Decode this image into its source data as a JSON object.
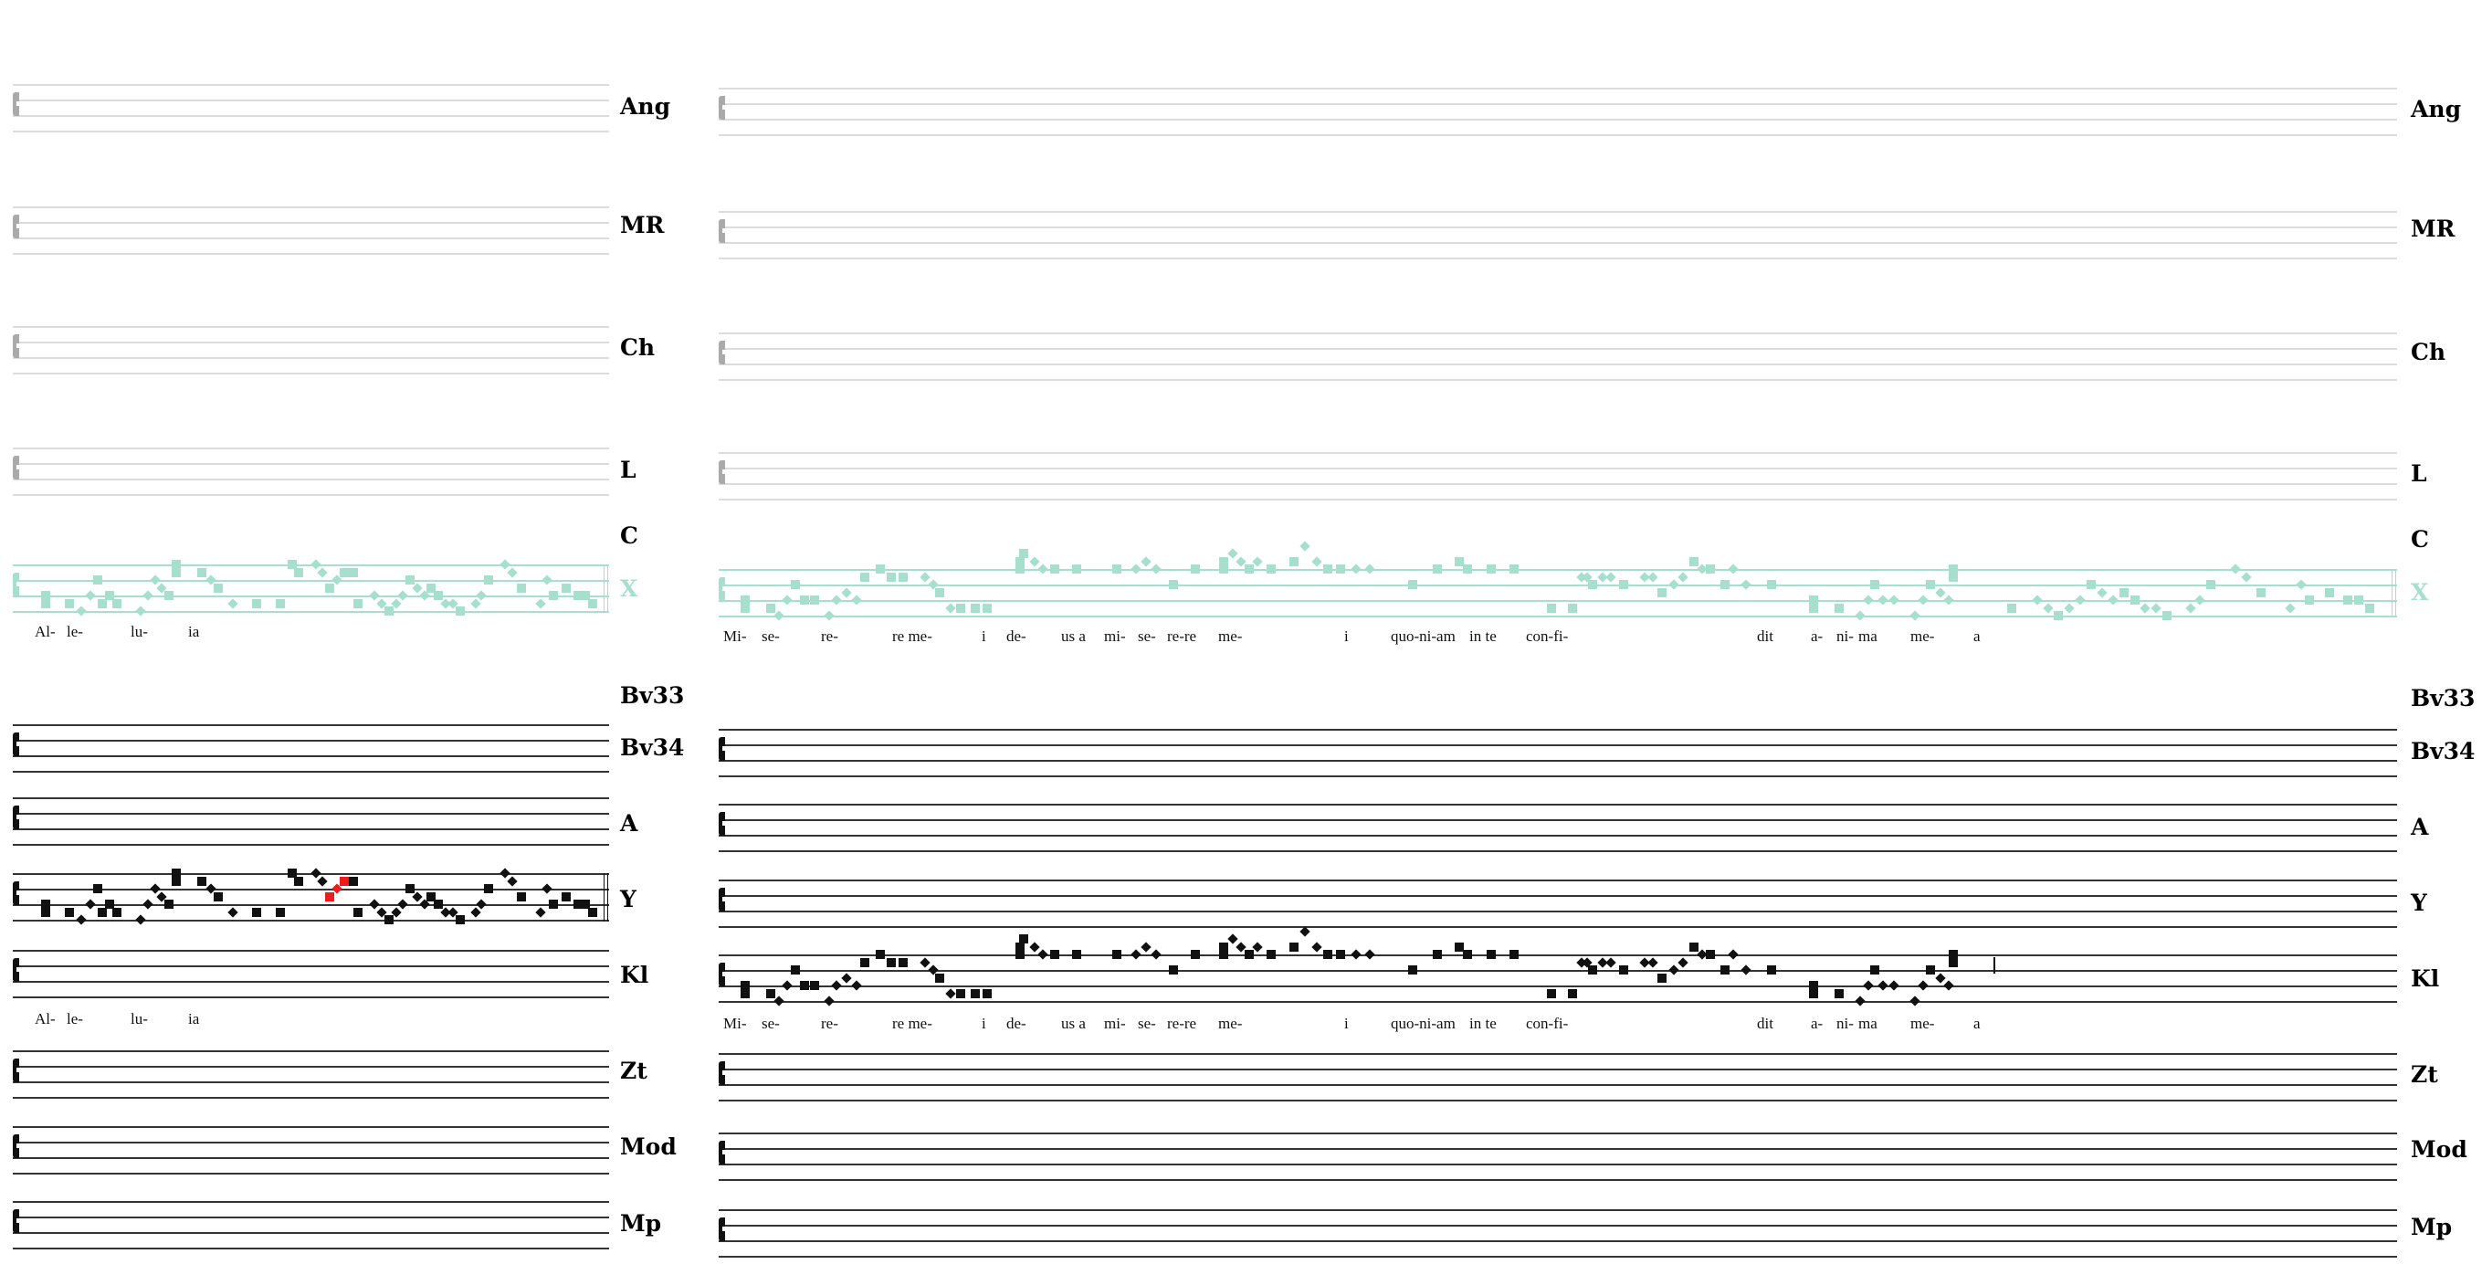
{
  "colors": {
    "grey": "#dcdcdc",
    "grey_clef": "#aaaaaa",
    "teal": "#a6e0cc",
    "black": "#111111",
    "highlight": "#ee1c1c"
  },
  "rows": [
    {
      "label": "Ang",
      "style": "grey",
      "staff": true
    },
    {
      "label": "MR",
      "style": "grey",
      "staff": true
    },
    {
      "label": "Ch",
      "style": "grey",
      "staff": true
    },
    {
      "label": "L",
      "style": "grey",
      "staff": true
    },
    {
      "label": "C",
      "style": "black",
      "staff": false
    },
    {
      "label": "X",
      "style": "teal",
      "staff": true
    },
    {
      "label": "Bv33",
      "style": "black",
      "staff": false
    },
    {
      "label": "Bv34",
      "style": "black",
      "staff": true
    },
    {
      "label": "A",
      "style": "black",
      "staff": true
    },
    {
      "label": "Y",
      "style": "black",
      "staff": true
    },
    {
      "label": "Kl",
      "style": "black",
      "staff": true
    },
    {
      "label": "Zt",
      "style": "black",
      "staff": true
    },
    {
      "label": "Mod",
      "style": "black",
      "staff": true
    },
    {
      "label": "Mp",
      "style": "black",
      "staff": true
    }
  ],
  "lyrics": {
    "left": [
      "Al-",
      "le-",
      "lu-",
      "ia"
    ],
    "right": [
      "Mi-",
      "se-",
      "re-",
      "re me-",
      "i",
      "de-",
      "us a",
      "mi-",
      "se-",
      "re-re",
      "me-",
      "i",
      "quo-ni-am",
      "in te",
      "con-fi-",
      "dit",
      "a-",
      "ni-",
      "ma",
      "me-",
      "a"
    ]
  }
}
